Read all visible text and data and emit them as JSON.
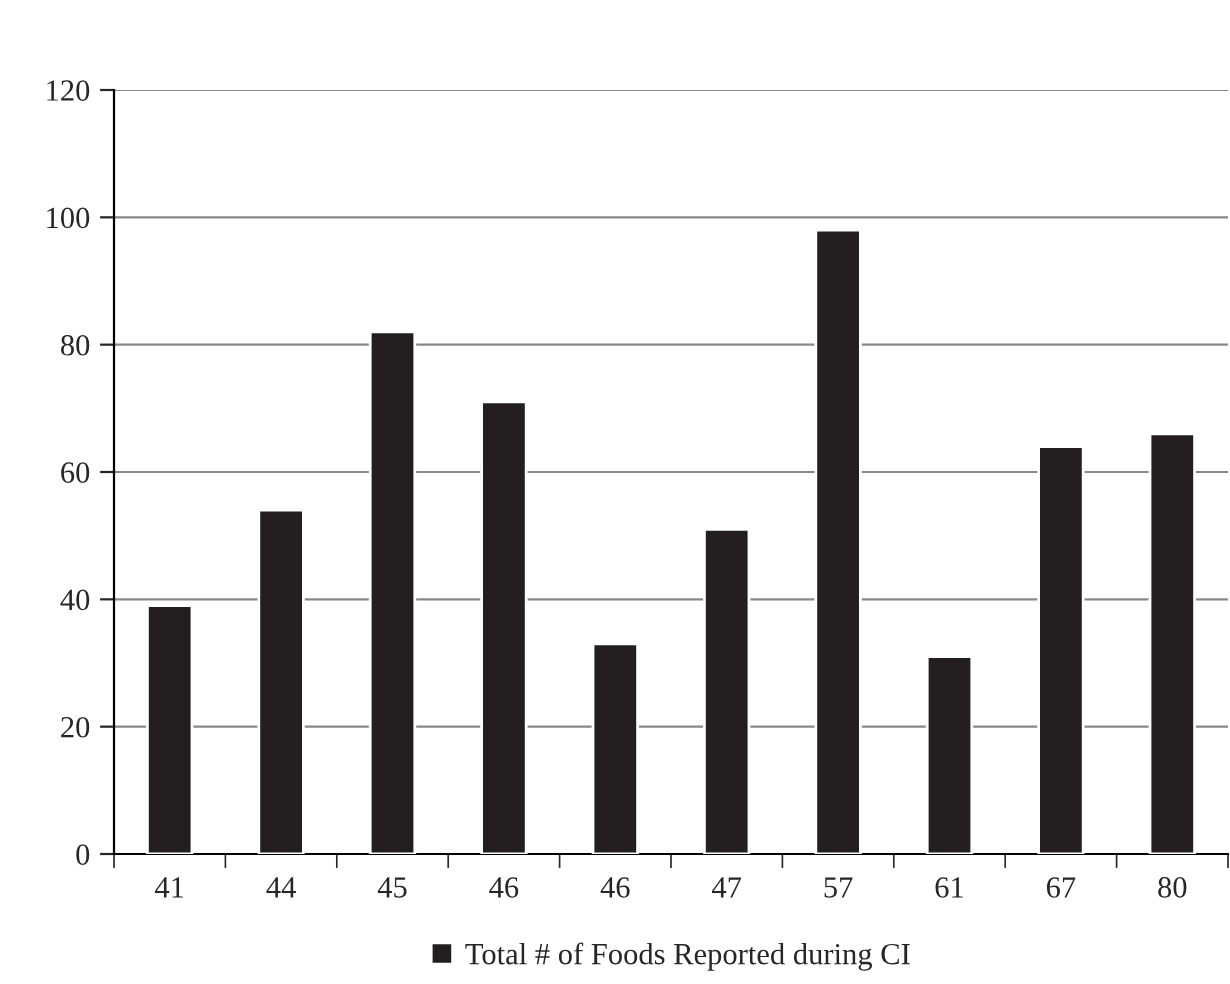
{
  "chart_data": {
    "type": "bar",
    "categories": [
      "41",
      "44",
      "45",
      "46",
      "46",
      "47",
      "57",
      "61",
      "67",
      "80"
    ],
    "series": [
      {
        "name": "Total # of Foods Reported during CI",
        "color": "#231f20",
        "values": [
          39,
          54,
          82,
          71,
          33,
          51,
          98,
          31,
          64,
          66
        ]
      }
    ],
    "ylim": [
      0,
      120
    ],
    "yticks": [
      0,
      20,
      40,
      60,
      80,
      100,
      120
    ],
    "grid": "y",
    "legend": "bottom"
  }
}
